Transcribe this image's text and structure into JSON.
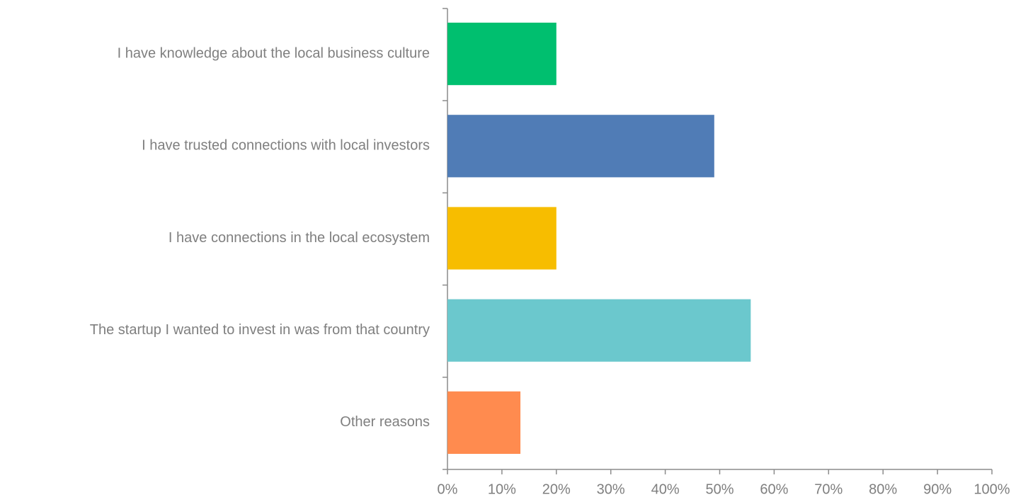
{
  "chart_data": {
    "type": "hbar",
    "categories": [
      "I have knowledge about the local business culture",
      "I have trusted connections with local investors",
      "I have connections in the local ecosystem",
      "The startup I wanted to invest in was from that country",
      "Other reasons"
    ],
    "values": [
      20,
      49,
      20,
      55.7,
      13.4
    ],
    "colors": [
      "#00bf6f",
      "#507cb6",
      "#f7bd00",
      "#6bc8cd",
      "#ff8b4f"
    ],
    "xlim": [
      0,
      100
    ],
    "xticks": [
      {
        "value": 0,
        "label": "0%"
      },
      {
        "value": 10,
        "label": "10%"
      },
      {
        "value": 20,
        "label": "20%"
      },
      {
        "value": 30,
        "label": "30%"
      },
      {
        "value": 40,
        "label": "40%"
      },
      {
        "value": 50,
        "label": "50%"
      },
      {
        "value": 60,
        "label": "60%"
      },
      {
        "value": 70,
        "label": "70%"
      },
      {
        "value": 80,
        "label": "80%"
      },
      {
        "value": 90,
        "label": "90%"
      },
      {
        "value": 100,
        "label": "100%"
      }
    ],
    "grid": false
  }
}
